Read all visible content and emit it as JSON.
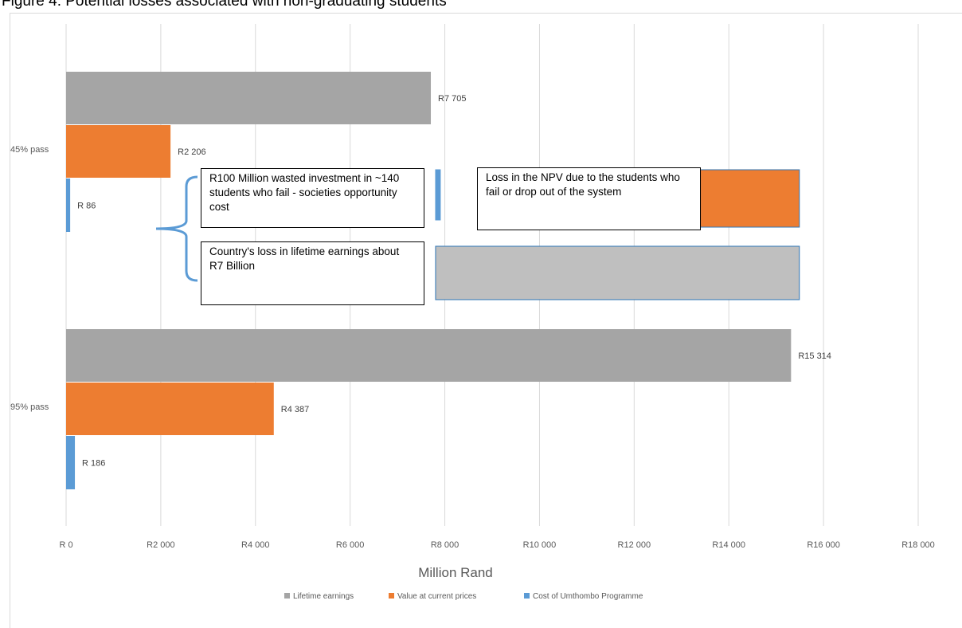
{
  "figure_title": "Figure 4: Potential losses associated with non-graduating students",
  "chart_data": {
    "type": "bar",
    "orientation": "horizontal",
    "categories": [
      "45% pass",
      "95% pass"
    ],
    "series": [
      {
        "name": "Lifetime earnings",
        "color": "#a5a5a5",
        "values": [
          7705,
          15314
        ],
        "labels": [
          "R7 705",
          "R15 314"
        ]
      },
      {
        "name": "Value at current prices",
        "color": "#ed7d31",
        "values": [
          2206,
          4387
        ],
        "labels": [
          "R2 206",
          "R4 387"
        ]
      },
      {
        "name": "Cost of Umthombo Programme",
        "color": "#5b9bd5",
        "values": [
          86,
          186
        ],
        "labels": [
          "R 86",
          "R 186"
        ]
      }
    ],
    "xlabel": "Million Rand",
    "xlim": [
      0,
      18000
    ],
    "xticks": [
      {
        "value": 0,
        "label": "R 0"
      },
      {
        "value": 2000,
        "label": "R2 000"
      },
      {
        "value": 4000,
        "label": "R4 000"
      },
      {
        "value": 6000,
        "label": "R6 000"
      },
      {
        "value": 8000,
        "label": "R8 000"
      },
      {
        "value": 10000,
        "label": "R10 000"
      },
      {
        "value": 12000,
        "label": "R12 000"
      },
      {
        "value": 14000,
        "label": "R14 000"
      },
      {
        "value": 16000,
        "label": "R16 000"
      },
      {
        "value": 18000,
        "label": "R18 000"
      }
    ],
    "grid": true,
    "legend_position": "bottom",
    "annotations": [
      {
        "id": "wasted",
        "text": "R100 Million wasted investment in ~140 students who fail - societies opportunity cost"
      },
      {
        "id": "npv",
        "text": "Loss in the NPV due to the students who fail or drop out of the system"
      },
      {
        "id": "lifetime",
        "text": "Country's loss in lifetime earnings about R7 Billion"
      }
    ],
    "difference_bars": [
      {
        "id": "cost-diff",
        "series": "Cost of Umthombo Programme",
        "from": 7805,
        "to": 7905,
        "color": "#5b9bd5"
      },
      {
        "id": "npv-diff",
        "series": "Value at current prices",
        "from": 13400,
        "to": 15490,
        "color": "#ed7d31"
      },
      {
        "id": "lifetime-diff",
        "series": "Lifetime earnings",
        "from": 7805,
        "to": 15490,
        "color": "#bfbfbf"
      }
    ]
  }
}
